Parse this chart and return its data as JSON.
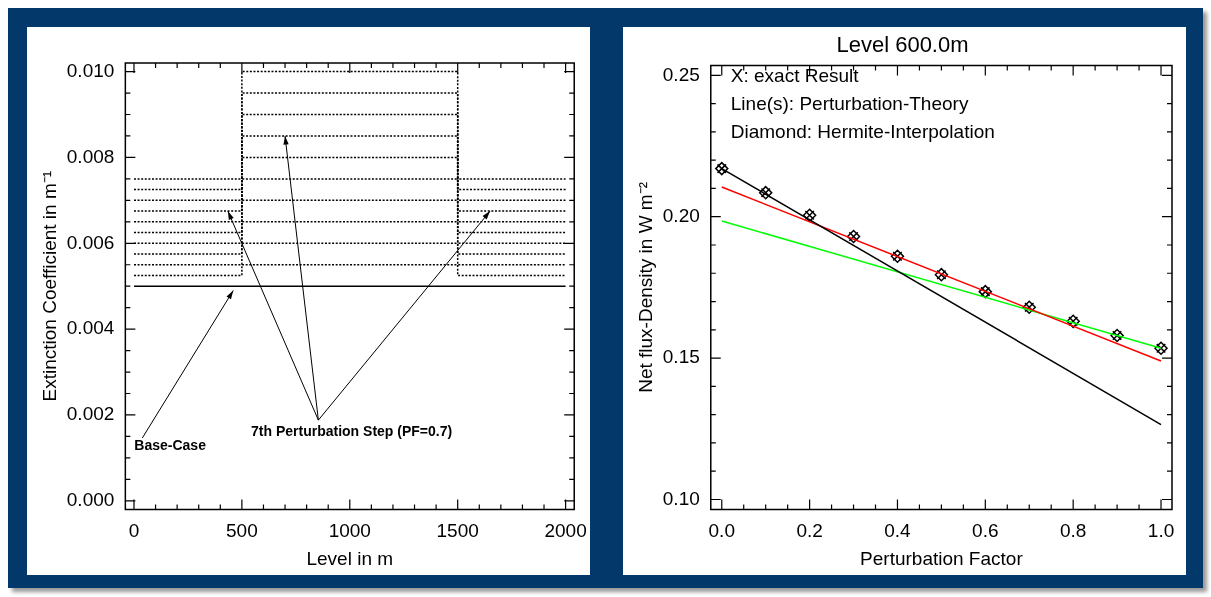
{
  "chart_data": [
    {
      "type": "line",
      "xlabel": "Level in m",
      "ylabel": "Extinction Coefficient in m⁻¹",
      "legend": false,
      "grid": false,
      "xlim": [
        -40,
        2040
      ],
      "ylim": [
        -0.0002,
        0.0102
      ],
      "xticks": [
        0,
        {
          "value": 100,
          "label": null
        },
        {
          "value": 200,
          "label": null
        },
        {
          "value": 300,
          "label": null
        },
        {
          "value": 400,
          "label": null
        },
        500,
        {
          "value": 600,
          "label": null
        },
        {
          "value": 700,
          "label": null
        },
        {
          "value": 800,
          "label": null
        },
        {
          "value": 900,
          "label": null
        },
        1000,
        {
          "value": 1100,
          "label": null
        },
        {
          "value": 1200,
          "label": null
        },
        {
          "value": 1300,
          "label": null
        },
        {
          "value": 1400,
          "label": null
        },
        1500,
        {
          "value": 1600,
          "label": null
        },
        {
          "value": 1700,
          "label": null
        },
        {
          "value": 1800,
          "label": null
        },
        {
          "value": 1900,
          "label": null
        },
        2000
      ],
      "yticks": [
        {
          "value": 0,
          "label": "0.000"
        },
        {
          "value": 0.0005,
          "label": null
        },
        {
          "value": 0.001,
          "label": null
        },
        {
          "value": 0.0015,
          "label": null
        },
        0.002,
        {
          "value": 0.0025,
          "label": null
        },
        {
          "value": 0.003,
          "label": null
        },
        {
          "value": 0.0035,
          "label": null
        },
        0.004,
        {
          "value": 0.0045,
          "label": null
        },
        {
          "value": 0.005,
          "label": null
        },
        {
          "value": 0.0055,
          "label": null
        },
        0.006,
        {
          "value": 0.0065,
          "label": null
        },
        {
          "value": 0.007,
          "label": null
        },
        {
          "value": 0.0075,
          "label": null
        },
        0.008,
        {
          "value": 0.0085,
          "label": null
        },
        {
          "value": 0.009,
          "label": null
        },
        {
          "value": 0.0095,
          "label": null
        },
        {
          "value": 0.01,
          "label": "0.010"
        }
      ],
      "annotations": [
        {
          "text": "Base-Case",
          "x": 460,
          "y": 0.0049
        },
        {
          "text": "7th Perturbation Step (PF=0.7)",
          "x": 700,
          "y": 0.0085
        }
      ],
      "series": [
        {
          "type": "line",
          "color": "#000000",
          "line_style": "solid",
          "x": [
            0,
            2000
          ],
          "values": [
            0.005,
            0.005
          ]
        },
        {
          "type": "line",
          "color": "#000000",
          "line_style": "dotted",
          "x": [
            0,
            500,
            500,
            1500,
            1500,
            2000
          ],
          "values": [
            0.00525,
            0.00525,
            0.0055,
            0.0055,
            0.00525,
            0.00525
          ]
        },
        {
          "type": "line",
          "color": "#000000",
          "line_style": "dotted",
          "x": [
            0,
            500,
            500,
            1500,
            1500,
            2000
          ],
          "values": [
            0.0055,
            0.0055,
            0.006,
            0.006,
            0.0055,
            0.0055
          ]
        },
        {
          "type": "line",
          "color": "#000000",
          "line_style": "dotted",
          "x": [
            0,
            500,
            500,
            1500,
            1500,
            2000
          ],
          "values": [
            0.00575,
            0.00575,
            0.0065,
            0.0065,
            0.00575,
            0.00575
          ]
        },
        {
          "type": "line",
          "color": "#000000",
          "line_style": "dotted",
          "x": [
            0,
            500,
            500,
            1500,
            1500,
            2000
          ],
          "values": [
            0.006,
            0.006,
            0.007,
            0.007,
            0.006,
            0.006
          ]
        },
        {
          "type": "line",
          "color": "#000000",
          "line_style": "dotted",
          "x": [
            0,
            500,
            500,
            1500,
            1500,
            2000
          ],
          "values": [
            0.00625,
            0.00625,
            0.0075,
            0.0075,
            0.00625,
            0.00625
          ]
        },
        {
          "type": "line",
          "color": "#000000",
          "line_style": "dotted",
          "x": [
            0,
            500,
            500,
            1500,
            1500,
            2000
          ],
          "values": [
            0.0065,
            0.0065,
            0.008,
            0.008,
            0.0065,
            0.0065
          ]
        },
        {
          "type": "line",
          "color": "#000000",
          "line_style": "dotted",
          "x": [
            0,
            500,
            500,
            1500,
            1500,
            2000
          ],
          "values": [
            0.00675,
            0.00675,
            0.0085,
            0.0085,
            0.00675,
            0.00675
          ]
        },
        {
          "type": "line",
          "color": "#000000",
          "line_style": "dotted",
          "x": [
            0,
            500,
            500,
            1500,
            1500,
            2000
          ],
          "values": [
            0.007,
            0.007,
            0.009,
            0.009,
            0.007,
            0.007
          ]
        },
        {
          "type": "line",
          "color": "#000000",
          "line_style": "dotted",
          "x": [
            0,
            500,
            500,
            1500,
            1500,
            2000
          ],
          "values": [
            0.00725,
            0.00725,
            0.0095,
            0.0095,
            0.00725,
            0.00725
          ]
        },
        {
          "type": "line",
          "color": "#000000",
          "line_style": "dotted",
          "x": [
            0,
            500,
            500,
            1500,
            1500,
            2000
          ],
          "values": [
            0.0075,
            0.0075,
            0.01,
            0.01,
            0.0075,
            0.0075
          ]
        }
      ]
    },
    {
      "type": "line",
      "title": "Level 600.0m",
      "xlabel": "Perturbation Factor",
      "ylabel": "Net flux-Density in W m⁻²",
      "legend": false,
      "grid": false,
      "xlim": [
        -0.025,
        1.025
      ],
      "ylim": [
        0.0965,
        0.2535
      ],
      "xticks": [
        {
          "value": 0,
          "label": "0.0"
        },
        {
          "value": 0.05,
          "label": null
        },
        {
          "value": 0.1,
          "label": null
        },
        {
          "value": 0.15,
          "label": null
        },
        0.2,
        {
          "value": 0.25,
          "label": null
        },
        {
          "value": 0.3,
          "label": null
        },
        {
          "value": 0.35,
          "label": null
        },
        0.4,
        {
          "value": 0.45,
          "label": null
        },
        {
          "value": 0.5,
          "label": null
        },
        {
          "value": 0.55,
          "label": null
        },
        0.6,
        {
          "value": 0.65,
          "label": null
        },
        {
          "value": 0.7,
          "label": null
        },
        {
          "value": 0.75,
          "label": null
        },
        0.8,
        {
          "value": 0.85,
          "label": null
        },
        {
          "value": 0.9,
          "label": null
        },
        {
          "value": 0.95,
          "label": null
        },
        {
          "value": 1,
          "label": "1.0"
        }
      ],
      "yticks": [
        {
          "value": 0.1,
          "label": "0.10"
        },
        {
          "value": 0.11,
          "label": null
        },
        {
          "value": 0.12,
          "label": null
        },
        {
          "value": 0.13,
          "label": null
        },
        {
          "value": 0.14,
          "label": null
        },
        0.15,
        {
          "value": 0.16,
          "label": null
        },
        {
          "value": 0.17,
          "label": null
        },
        {
          "value": 0.18,
          "label": null
        },
        {
          "value": 0.19,
          "label": null
        },
        {
          "value": 0.2,
          "label": "0.20"
        },
        {
          "value": 0.21,
          "label": null
        },
        {
          "value": 0.22,
          "label": null
        },
        {
          "value": 0.23,
          "label": null
        },
        {
          "value": 0.24,
          "label": null
        },
        0.25
      ],
      "annotations": [
        "X: exact Result",
        "Line(s): Perturbation-Theory",
        "Diamond: Hermite-Interpolation"
      ],
      "series": [
        {
          "type": "line",
          "color": "#000000",
          "line_style": "solid",
          "marker": "none",
          "x": [
            0,
            1
          ],
          "values": [
            0.217,
            0.1265
          ]
        },
        {
          "type": "line",
          "color": "#ff0000",
          "line_style": "solid",
          "marker": "none",
          "x": [
            0,
            1
          ],
          "values": [
            0.2105,
            0.149
          ]
        },
        {
          "type": "line",
          "color": "#00ff00",
          "line_style": "solid",
          "marker": "none",
          "x": [
            0,
            1
          ],
          "values": [
            0.1985,
            0.1535
          ]
        },
        {
          "type": "scatter",
          "color": "#000000",
          "marker": "cross",
          "x": [
            0,
            0.1,
            0.2,
            0.3,
            0.4,
            0.5,
            0.6,
            0.7,
            0.8,
            0.9,
            1
          ],
          "values": [
            0.217,
            0.2085,
            0.2005,
            0.193,
            0.186,
            0.1795,
            0.1735,
            0.168,
            0.163,
            0.158,
            0.1535
          ]
        },
        {
          "type": "scatter",
          "color": "#000000",
          "marker": "diamond",
          "x": [
            0,
            0.1,
            0.2,
            0.3,
            0.4,
            0.5,
            0.6,
            0.7,
            0.8,
            0.9,
            1
          ],
          "values": [
            0.217,
            0.2085,
            0.2005,
            0.193,
            0.186,
            0.1795,
            0.1735,
            0.168,
            0.163,
            0.158,
            0.1535
          ]
        }
      ]
    }
  ]
}
